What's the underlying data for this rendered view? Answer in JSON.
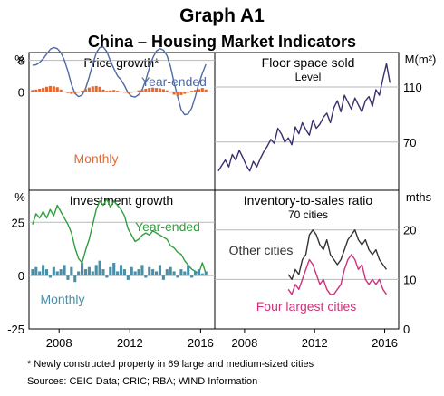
{
  "header": {
    "graph_label": "Graph A1",
    "title": "China – Housing Market Indicators"
  },
  "footnote": "*      Newly constructed property in 69 large and medium-sized cities",
  "sources": "Sources:   CEIC Data; CRIC; RBA; WIND Information",
  "chart_data": [
    {
      "type": "line+bar",
      "panel": "top-left",
      "title": "Price growth*",
      "unit": "%",
      "ylim": [
        -25,
        10
      ],
      "yticks": [
        0,
        8
      ],
      "series": [
        {
          "name": "Year-ended",
          "color": "#4f6aa5",
          "x": [
            2006.5,
            2006.7,
            2006.9,
            2007.1,
            2007.3,
            2007.5,
            2007.7,
            2007.9,
            2008.1,
            2008.3,
            2008.5,
            2008.7,
            2008.9,
            2009.1,
            2009.3,
            2009.5,
            2009.7,
            2009.9,
            2010.1,
            2010.3,
            2010.5,
            2010.7,
            2010.9,
            2011.1,
            2011.3,
            2011.5,
            2011.7,
            2011.9,
            2012.1,
            2012.3,
            2012.5,
            2012.7,
            2012.9,
            2013.1,
            2013.3,
            2013.5,
            2013.7,
            2013.9,
            2014.1,
            2014.3,
            2014.5,
            2014.7,
            2014.9,
            2015.1,
            2015.3,
            2015.5,
            2015.7,
            2015.9,
            2016.1,
            2016.3
          ],
          "values": [
            6.8,
            6.9,
            7.5,
            8.4,
            9.6,
            10.8,
            11.3,
            11.0,
            10.0,
            8.1,
            5.2,
            1.9,
            -0.4,
            -1.2,
            -0.8,
            0.9,
            3.8,
            7.0,
            9.9,
            11.3,
            11.4,
            10.2,
            7.9,
            5.9,
            4.1,
            3.1,
            1.6,
            -0.2,
            -1.1,
            -1.3,
            -0.7,
            0.6,
            3.0,
            6.1,
            8.7,
            10.4,
            11.0,
            10.6,
            9.2,
            6.4,
            2.4,
            -1.2,
            -4.5,
            -5.8,
            -5.6,
            -4.1,
            -1.2,
            2.1,
            4.7,
            7.0
          ]
        },
        {
          "name": "Monthly",
          "type": "bar",
          "color": "#e26a32",
          "x": [
            2006.5,
            2006.7,
            2006.9,
            2007.1,
            2007.3,
            2007.5,
            2007.7,
            2007.9,
            2008.1,
            2008.3,
            2008.5,
            2008.7,
            2008.9,
            2009.1,
            2009.3,
            2009.5,
            2009.7,
            2009.9,
            2010.1,
            2010.3,
            2010.5,
            2010.7,
            2010.9,
            2011.1,
            2011.3,
            2011.5,
            2011.7,
            2011.9,
            2012.1,
            2012.3,
            2012.5,
            2012.7,
            2012.9,
            2013.1,
            2013.3,
            2013.5,
            2013.7,
            2013.9,
            2014.1,
            2014.3,
            2014.5,
            2014.7,
            2014.9,
            2015.1,
            2015.3,
            2015.5,
            2015.7,
            2015.9,
            2016.1,
            2016.3
          ],
          "values": [
            0.5,
            0.6,
            0.8,
            1.0,
            1.3,
            1.5,
            1.4,
            1.2,
            0.6,
            0.1,
            -0.3,
            -0.5,
            -0.4,
            -0.2,
            0.3,
            0.7,
            1.1,
            1.4,
            1.5,
            1.3,
            0.6,
            0.3,
            0.4,
            0.5,
            0.3,
            0.1,
            -0.2,
            -0.3,
            -0.2,
            0.1,
            0.4,
            0.6,
            0.8,
            1.0,
            1.1,
            1.0,
            0.9,
            0.7,
            0.4,
            -0.2,
            -0.7,
            -1.0,
            -0.8,
            -0.5,
            -0.2,
            0.3,
            0.5,
            0.7,
            1.0,
            0.6
          ]
        }
      ]
    },
    {
      "type": "line",
      "panel": "top-right",
      "title": "Floor space sold",
      "subtitle": "Level",
      "unit": "M(m²)",
      "ylim": [
        35,
        135
      ],
      "yticks": [
        70,
        110
      ],
      "series": [
        {
          "name": "Level",
          "color": "#3d2e6e",
          "x": [
            2006.5,
            2006.7,
            2006.9,
            2007.1,
            2007.3,
            2007.5,
            2007.7,
            2007.9,
            2008.1,
            2008.3,
            2008.5,
            2008.7,
            2008.9,
            2009.1,
            2009.3,
            2009.5,
            2009.7,
            2009.9,
            2010.1,
            2010.3,
            2010.5,
            2010.7,
            2010.9,
            2011.1,
            2011.3,
            2011.5,
            2011.7,
            2011.9,
            2012.1,
            2012.3,
            2012.5,
            2012.7,
            2012.9,
            2013.1,
            2013.3,
            2013.5,
            2013.7,
            2013.9,
            2014.1,
            2014.3,
            2014.5,
            2014.7,
            2014.9,
            2015.1,
            2015.3,
            2015.5,
            2015.7,
            2015.9,
            2016.1,
            2016.3
          ],
          "values": [
            49,
            53,
            57,
            52,
            61,
            57,
            64,
            59,
            53,
            49,
            56,
            52,
            58,
            63,
            67,
            72,
            69,
            80,
            76,
            70,
            73,
            68,
            81,
            76,
            84,
            79,
            75,
            86,
            80,
            83,
            88,
            91,
            84,
            95,
            100,
            92,
            104,
            99,
            94,
            102,
            97,
            92,
            100,
            103,
            96,
            108,
            104,
            116,
            127,
            113
          ]
        }
      ]
    },
    {
      "type": "line+bar",
      "panel": "bottom-left",
      "title": "Investment growth",
      "unit": "%",
      "ylim": [
        -25,
        40
      ],
      "yticks": [
        -25,
        0,
        25
      ],
      "series": [
        {
          "name": "Year-ended",
          "color": "#2f9e3e",
          "x": [
            2006.5,
            2006.7,
            2006.9,
            2007.1,
            2007.3,
            2007.5,
            2007.7,
            2007.9,
            2008.1,
            2008.3,
            2008.5,
            2008.7,
            2008.9,
            2009.1,
            2009.3,
            2009.5,
            2009.7,
            2009.9,
            2010.1,
            2010.3,
            2010.5,
            2010.7,
            2010.9,
            2011.1,
            2011.3,
            2011.5,
            2011.7,
            2011.9,
            2012.1,
            2012.3,
            2012.5,
            2012.7,
            2012.9,
            2013.1,
            2013.3,
            2013.5,
            2013.7,
            2013.9,
            2014.1,
            2014.3,
            2014.5,
            2014.7,
            2014.9,
            2015.1,
            2015.3,
            2015.5,
            2015.7,
            2015.9,
            2016.1,
            2016.3
          ],
          "values": [
            24,
            29,
            27,
            30,
            27,
            31,
            28,
            33,
            30,
            27,
            24,
            20,
            13,
            8,
            6,
            12,
            17,
            24,
            31,
            35,
            33,
            36,
            32,
            35,
            33,
            31,
            28,
            22,
            19,
            16,
            17,
            19,
            20,
            19,
            21,
            20,
            19,
            18,
            17,
            14,
            13,
            11,
            10,
            7,
            5,
            3,
            2,
            1,
            6,
            1
          ]
        },
        {
          "name": "Monthly",
          "type": "bar",
          "color": "#4a8fa8",
          "x": [
            2006.5,
            2006.7,
            2006.9,
            2007.1,
            2007.3,
            2007.5,
            2007.7,
            2007.9,
            2008.1,
            2008.3,
            2008.5,
            2008.7,
            2008.9,
            2009.1,
            2009.3,
            2009.5,
            2009.7,
            2009.9,
            2010.1,
            2010.3,
            2010.5,
            2010.7,
            2010.9,
            2011.1,
            2011.3,
            2011.5,
            2011.7,
            2011.9,
            2012.1,
            2012.3,
            2012.5,
            2012.7,
            2012.9,
            2013.1,
            2013.3,
            2013.5,
            2013.7,
            2013.9,
            2014.1,
            2014.3,
            2014.5,
            2014.7,
            2014.9,
            2015.1,
            2015.3,
            2015.5,
            2015.7,
            2015.9,
            2016.1,
            2016.3
          ],
          "values": [
            3,
            4,
            2,
            5,
            3,
            -1,
            4,
            2,
            3,
            5,
            -2,
            4,
            -3,
            2,
            6,
            3,
            4,
            2,
            5,
            7,
            3,
            -1,
            4,
            6,
            2,
            5,
            3,
            -2,
            4,
            2,
            3,
            5,
            -1,
            4,
            3,
            2,
            5,
            -2,
            3,
            4,
            2,
            -1,
            3,
            2,
            5,
            -1,
            2,
            3,
            1,
            2
          ]
        }
      ]
    },
    {
      "type": "line",
      "panel": "bottom-right",
      "title": "Inventory-to-sales ratio",
      "subtitle": "70 cities",
      "unit": "mths",
      "ylim": [
        0,
        28
      ],
      "yticks": [
        0,
        10,
        20
      ],
      "series": [
        {
          "name": "Other cities",
          "color": "#333333",
          "x": [
            2010.5,
            2010.7,
            2010.9,
            2011.1,
            2011.3,
            2011.5,
            2011.7,
            2011.9,
            2012.1,
            2012.3,
            2012.5,
            2012.7,
            2012.9,
            2013.1,
            2013.3,
            2013.5,
            2013.7,
            2013.9,
            2014.1,
            2014.3,
            2014.5,
            2014.7,
            2014.9,
            2015.1,
            2015.3,
            2015.5,
            2015.7,
            2015.9,
            2016.1
          ],
          "values": [
            11,
            10,
            12,
            11,
            14,
            15,
            19,
            20,
            19,
            17,
            16,
            18,
            15,
            14,
            13,
            14,
            16,
            18,
            19,
            20,
            18,
            17,
            18,
            16,
            15,
            16,
            14,
            13,
            12
          ]
        },
        {
          "name": "Four largest cities",
          "color": "#d0317a",
          "x": [
            2010.5,
            2010.7,
            2010.9,
            2011.1,
            2011.3,
            2011.5,
            2011.7,
            2011.9,
            2012.1,
            2012.3,
            2012.5,
            2012.7,
            2012.9,
            2013.1,
            2013.3,
            2013.5,
            2013.7,
            2013.9,
            2014.1,
            2014.3,
            2014.5,
            2014.7,
            2014.9,
            2015.1,
            2015.3,
            2015.5,
            2015.7,
            2015.9,
            2016.1
          ],
          "values": [
            8,
            7,
            9,
            8,
            10,
            12,
            14,
            13,
            11,
            9,
            10,
            8,
            7,
            7,
            8,
            9,
            12,
            14,
            15,
            14,
            12,
            13,
            10,
            9,
            10,
            9,
            10,
            8,
            7
          ]
        }
      ]
    }
  ],
  "x_axis": {
    "xlim": [
      2006.3,
      2016.8
    ],
    "ticks": [
      2008,
      2012,
      2016
    ],
    "tick_labels": [
      "2008",
      "2012",
      "2016"
    ]
  },
  "colors": {
    "grid": "#b9b9b9",
    "frame": "#000000"
  }
}
